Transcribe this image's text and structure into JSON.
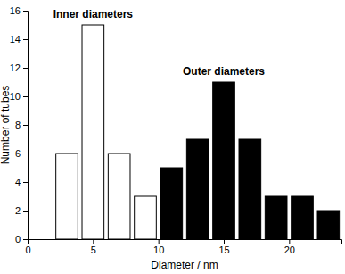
{
  "chart_data": {
    "type": "histogram",
    "x_label": "Diameter / nm",
    "y_label": "Number of tubes",
    "series": [
      {
        "name": "Inner diameters",
        "color": "#ffffff",
        "bins": [
          2,
          4,
          6,
          8,
          10
        ],
        "values": [
          6,
          15,
          6,
          3
        ]
      },
      {
        "name": "Outer diameters",
        "color": "#000000",
        "bins": [
          10,
          12,
          14,
          16,
          18,
          20,
          22,
          24
        ],
        "values": [
          5,
          7,
          11,
          7,
          3,
          3,
          2
        ]
      }
    ],
    "xlim": [
      0,
      24
    ],
    "xticks": [
      0,
      5,
      10,
      15,
      20
    ],
    "ylim": [
      0,
      16
    ],
    "yticks": [
      0,
      2,
      4,
      6,
      8,
      10,
      12,
      14,
      16
    ],
    "grid": false
  }
}
